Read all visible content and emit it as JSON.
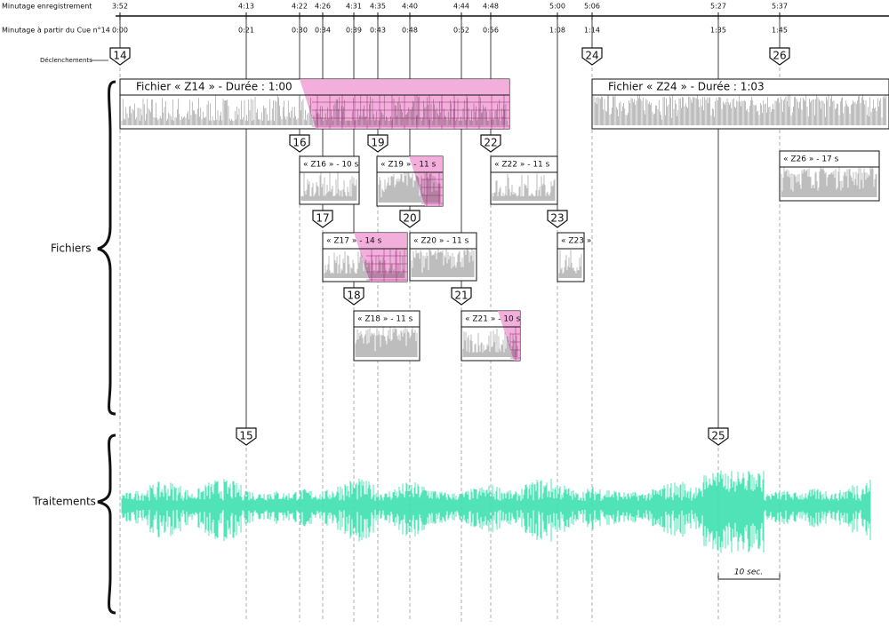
{
  "labels": {
    "recording_time": "Minutage enregistrement",
    "cue_time": "Minutage à partir du Cue n°14",
    "triggers": "Déclenchements",
    "files": "Fichiers",
    "processing": "Traitements",
    "scale": "10 sec."
  },
  "timeline": {
    "recording": [
      "3:52",
      "4:13",
      "4:22",
      "4:26",
      "4:31",
      "4:35",
      "4:40",
      "4:44",
      "4:48",
      "5:00",
      "5:06",
      "5:27",
      "5:37"
    ],
    "cue": [
      "0:00",
      "0:21",
      "0:30",
      "0:34",
      "0:39",
      "0:43",
      "0:48",
      "0:52",
      "0:56",
      "1:08",
      "1:14",
      "1:35",
      "1:45"
    ]
  },
  "triggers": [
    "14",
    "15",
    "16",
    "17",
    "18",
    "19",
    "20",
    "21",
    "22",
    "23",
    "24",
    "25",
    "26"
  ],
  "files": [
    "Fichier « Z14 » - Durée : 1:00",
    "Fichier « Z24 » - Durée : 1:03",
    "« Z16 » - 10 s",
    "« Z19 » - 11 s",
    "« Z22 » - 11 s",
    "« Z26 » - 17 s",
    "« Z17 » - 14 s",
    "« Z20 » - 11 s",
    "« Z23 »",
    "« Z18 » - 11 s",
    "« Z21 » - 10 s"
  ]
}
